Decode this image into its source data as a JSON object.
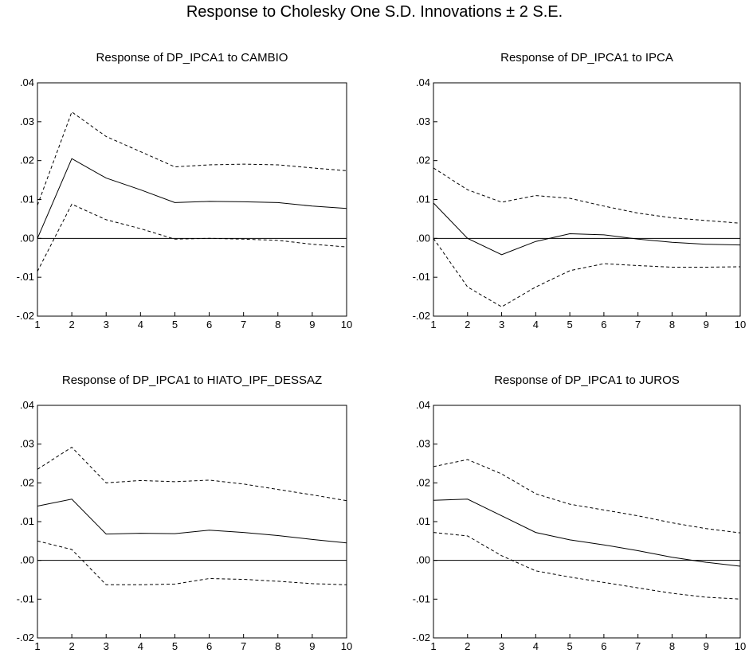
{
  "figure": {
    "title": "Response to Cholesky One S.D. Innovations ± 2 S.E."
  },
  "chart_data": [
    {
      "type": "line",
      "title": "Response of DP_IPCA1 to CAMBIO",
      "x": [
        1,
        2,
        3,
        4,
        5,
        6,
        7,
        8,
        9,
        10
      ],
      "xlim": [
        1,
        10
      ],
      "ylim": [
        -0.02,
        0.04
      ],
      "yticks": [
        ".04",
        ".03",
        ".02",
        ".01",
        ".00",
        "-.01",
        "-.02"
      ],
      "xticks": [
        "1",
        "2",
        "3",
        "4",
        "5",
        "6",
        "7",
        "8",
        "9",
        "10"
      ],
      "grid": false,
      "zero_line": true,
      "series": [
        {
          "style": "solid",
          "values": [
            0.0,
            0.0205,
            0.0155,
            0.0125,
            0.0092,
            0.0095,
            0.0094,
            0.0092,
            0.0083,
            0.0077
          ]
        },
        {
          "style": "dashed",
          "values": [
            0.0085,
            0.0325,
            0.0262,
            0.0223,
            0.0184,
            0.0189,
            0.0191,
            0.0189,
            0.0181,
            0.0174
          ]
        },
        {
          "style": "dashed",
          "values": [
            -0.0085,
            0.0088,
            0.0048,
            0.0025,
            -0.0002,
            0.0,
            -0.0002,
            -0.0005,
            -0.0015,
            -0.0022
          ]
        }
      ]
    },
    {
      "type": "line",
      "title": "Response of DP_IPCA1 to IPCA",
      "x": [
        1,
        2,
        3,
        4,
        5,
        6,
        7,
        8,
        9,
        10
      ],
      "xlim": [
        1,
        10
      ],
      "ylim": [
        -0.02,
        0.04
      ],
      "yticks": [
        ".04",
        ".03",
        ".02",
        ".01",
        ".00",
        "-.01",
        "-.02"
      ],
      "xticks": [
        "1",
        "2",
        "3",
        "4",
        "5",
        "6",
        "7",
        "8",
        "9",
        "10"
      ],
      "grid": false,
      "zero_line": true,
      "series": [
        {
          "style": "solid",
          "values": [
            0.0091,
            0.0,
            -0.0042,
            -0.0008,
            0.0012,
            0.0009,
            -0.0002,
            -0.001,
            -0.0015,
            -0.0017
          ]
        },
        {
          "style": "dashed",
          "values": [
            0.0181,
            0.0125,
            0.0093,
            0.011,
            0.0103,
            0.0083,
            0.0065,
            0.0053,
            0.0046,
            0.0039
          ]
        },
        {
          "style": "dashed",
          "values": [
            0.0,
            -0.0125,
            -0.0176,
            -0.0125,
            -0.0083,
            -0.0065,
            -0.007,
            -0.0074,
            -0.0074,
            -0.0073
          ]
        }
      ]
    },
    {
      "type": "line",
      "title": "Response of DP_IPCA1 to HIATO_IPF_DESSAZ",
      "x": [
        1,
        2,
        3,
        4,
        5,
        6,
        7,
        8,
        9,
        10
      ],
      "xlim": [
        1,
        10
      ],
      "ylim": [
        -0.02,
        0.04
      ],
      "yticks": [
        ".04",
        ".03",
        ".02",
        ".01",
        ".00",
        "-.01",
        "-.02"
      ],
      "xticks": [
        "1",
        "2",
        "3",
        "4",
        "5",
        "6",
        "7",
        "8",
        "9",
        "10"
      ],
      "grid": false,
      "zero_line": true,
      "series": [
        {
          "style": "solid",
          "values": [
            0.014,
            0.0158,
            0.0068,
            0.007,
            0.0069,
            0.0078,
            0.0072,
            0.0064,
            0.0054,
            0.0045
          ]
        },
        {
          "style": "dashed",
          "values": [
            0.0235,
            0.0292,
            0.02,
            0.0206,
            0.0203,
            0.0207,
            0.0197,
            0.0183,
            0.0169,
            0.0154
          ]
        },
        {
          "style": "dashed",
          "values": [
            0.005,
            0.0028,
            -0.0063,
            -0.0063,
            -0.0061,
            -0.0047,
            -0.0049,
            -0.0054,
            -0.006,
            -0.0063
          ]
        }
      ]
    },
    {
      "type": "line",
      "title": "Response of DP_IPCA1 to JUROS",
      "x": [
        1,
        2,
        3,
        4,
        5,
        6,
        7,
        8,
        9,
        10
      ],
      "xlim": [
        1,
        10
      ],
      "ylim": [
        -0.02,
        0.04
      ],
      "yticks": [
        ".04",
        ".03",
        ".02",
        ".01",
        ".00",
        "-.01",
        "-.02"
      ],
      "xticks": [
        "1",
        "2",
        "3",
        "4",
        "5",
        "6",
        "7",
        "8",
        "9",
        "10"
      ],
      "grid": false,
      "zero_line": true,
      "series": [
        {
          "style": "solid",
          "values": [
            0.0155,
            0.0158,
            0.0115,
            0.0072,
            0.0053,
            0.004,
            0.0025,
            0.0008,
            -0.0005,
            -0.0015
          ]
        },
        {
          "style": "dashed",
          "values": [
            0.0242,
            0.026,
            0.0223,
            0.0172,
            0.0145,
            0.013,
            0.0115,
            0.0097,
            0.0082,
            0.0071
          ]
        },
        {
          "style": "dashed",
          "values": [
            0.0072,
            0.0063,
            0.0012,
            -0.0027,
            -0.0043,
            -0.0057,
            -0.0071,
            -0.0085,
            -0.0095,
            -0.01
          ]
        }
      ]
    }
  ]
}
